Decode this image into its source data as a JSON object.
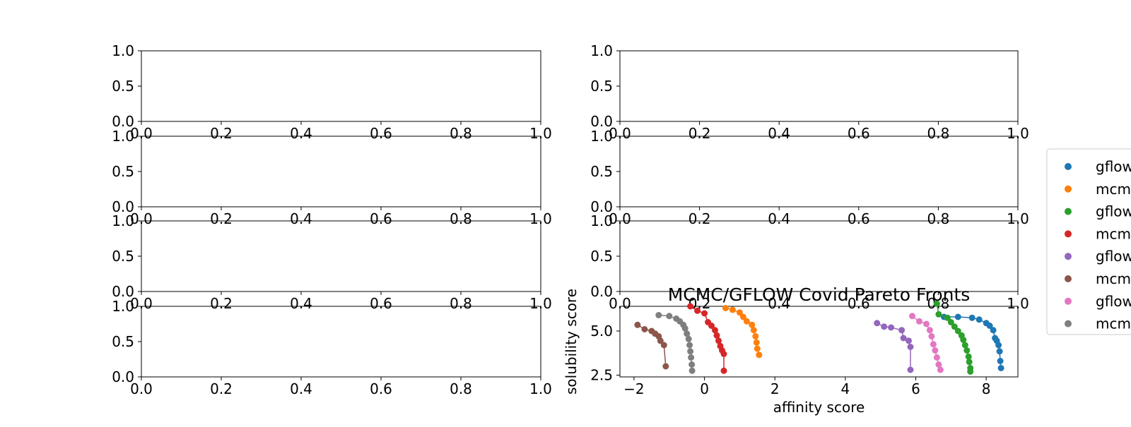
{
  "chart_data": [
    {
      "type": "empty",
      "position": "row1-left",
      "xlim": [
        0,
        1
      ],
      "ylim": [
        0,
        1
      ],
      "xticks": [
        "0.0",
        "0.2",
        "0.4",
        "0.6",
        "0.8",
        "1.0"
      ],
      "yticks": [
        "0.0",
        "0.5",
        "1.0"
      ]
    },
    {
      "type": "empty",
      "position": "row1-right",
      "xlim": [
        0,
        1
      ],
      "ylim": [
        0,
        1
      ],
      "xticks": [
        "0.0",
        "0.2",
        "0.4",
        "0.6",
        "0.8",
        "1.0"
      ],
      "yticks": [
        "0.0",
        "0.5",
        "1.0"
      ]
    },
    {
      "type": "empty",
      "position": "row2-left",
      "xlim": [
        0,
        1
      ],
      "ylim": [
        0,
        1
      ],
      "xticks": [
        "0.0",
        "0.2",
        "0.4",
        "0.6",
        "0.8",
        "1.0"
      ],
      "yticks": [
        "0.0",
        "0.5",
        "1.0"
      ]
    },
    {
      "type": "empty",
      "position": "row2-right",
      "xlim": [
        0,
        1
      ],
      "ylim": [
        0,
        1
      ],
      "xticks": [
        "0.0",
        "0.2",
        "0.4",
        "0.6",
        "0.8",
        "1.0"
      ],
      "yticks": [
        "0.0",
        "0.5",
        "1.0"
      ]
    },
    {
      "type": "empty",
      "position": "row3-left",
      "xlim": [
        0,
        1
      ],
      "ylim": [
        0,
        1
      ],
      "xticks": [
        "0.0",
        "0.2",
        "0.4",
        "0.6",
        "0.8",
        "1.0"
      ],
      "yticks": [
        "0.0",
        "0.5",
        "1.0"
      ]
    },
    {
      "type": "empty",
      "position": "row3-right",
      "xlim": [
        0,
        1
      ],
      "ylim": [
        0,
        1
      ],
      "xticks": [
        "0.0",
        "0.2",
        "0.4",
        "0.6",
        "0.8",
        "1.0"
      ],
      "yticks": [
        "0.0",
        "0.5",
        "1.0"
      ]
    },
    {
      "type": "empty",
      "position": "row4-left",
      "xlim": [
        0,
        1
      ],
      "ylim": [
        0,
        1
      ],
      "xticks": [
        "0.0",
        "0.2",
        "0.4",
        "0.6",
        "0.8",
        "1.0"
      ],
      "yticks": [
        "0.0",
        "0.5",
        "1.0"
      ]
    },
    {
      "type": "scatter",
      "position": "row4-right",
      "title": "MCMC/GFLOW Covid Pareto Fronts",
      "xlabel": "affinity score",
      "ylabel": "solubility score",
      "xlim": [
        -2.4,
        8.9
      ],
      "ylim": [
        2.4,
        6.4
      ],
      "xticks": [
        -2,
        0,
        2,
        4,
        6,
        8
      ],
      "xtick_labels": [
        "−2",
        "0",
        "2",
        "4",
        "6",
        "8"
      ],
      "yticks": [
        2.5,
        5.0
      ],
      "ytick_labels": [
        "2.5",
        "5.0"
      ],
      "legend_placement": "right, outside",
      "series": [
        {
          "name": "gflow",
          "color": "#1f77b4",
          "points": [
            [
              6.8,
              5.8
            ],
            [
              7.2,
              5.8
            ],
            [
              7.6,
              5.75
            ],
            [
              7.8,
              5.65
            ],
            [
              8.0,
              5.45
            ],
            [
              8.1,
              5.3
            ],
            [
              8.2,
              5.05
            ],
            [
              8.25,
              4.6
            ],
            [
              8.3,
              4.45
            ],
            [
              8.35,
              4.2
            ],
            [
              8.38,
              3.85
            ],
            [
              8.4,
              3.3
            ],
            [
              8.42,
              2.9
            ]
          ]
        },
        {
          "name": "mcmc",
          "color": "#ff7f0e",
          "points": [
            [
              0.6,
              6.3
            ],
            [
              0.8,
              6.2
            ],
            [
              1.0,
              6.05
            ],
            [
              1.1,
              5.8
            ],
            [
              1.2,
              5.55
            ],
            [
              1.35,
              5.35
            ],
            [
              1.4,
              5.05
            ],
            [
              1.45,
              4.7
            ],
            [
              1.48,
              4.35
            ],
            [
              1.5,
              4.0
            ],
            [
              1.55,
              3.65
            ]
          ]
        },
        {
          "name": "gflow",
          "color": "#2ca02c",
          "points": [
            [
              6.6,
              6.55
            ],
            [
              6.65,
              5.95
            ],
            [
              6.9,
              5.75
            ],
            [
              7.0,
              5.5
            ],
            [
              7.1,
              5.25
            ],
            [
              7.2,
              5.0
            ],
            [
              7.3,
              4.75
            ],
            [
              7.35,
              4.5
            ],
            [
              7.4,
              4.2
            ],
            [
              7.45,
              3.9
            ],
            [
              7.5,
              3.55
            ],
            [
              7.52,
              3.25
            ],
            [
              7.55,
              2.9
            ],
            [
              7.55,
              2.7
            ]
          ]
        },
        {
          "name": "mcmc",
          "color": "#d62728",
          "points": [
            [
              -0.4,
              6.4
            ],
            [
              -0.2,
              6.15
            ],
            [
              0.0,
              6.0
            ],
            [
              0.1,
              5.5
            ],
            [
              0.2,
              5.3
            ],
            [
              0.3,
              5.05
            ],
            [
              0.35,
              4.75
            ],
            [
              0.4,
              4.45
            ],
            [
              0.45,
              4.15
            ],
            [
              0.5,
              3.9
            ],
            [
              0.55,
              3.7
            ],
            [
              0.55,
              2.75
            ]
          ]
        },
        {
          "name": "gflow",
          "color": "#9467bd",
          "points": [
            [
              4.9,
              5.45
            ],
            [
              5.1,
              5.25
            ],
            [
              5.3,
              5.2
            ],
            [
              5.6,
              5.05
            ],
            [
              5.65,
              4.6
            ],
            [
              5.8,
              4.45
            ],
            [
              5.85,
              4.1
            ],
            [
              5.85,
              2.8
            ]
          ]
        },
        {
          "name": "mcmc",
          "color": "#8c564b",
          "points": [
            [
              -1.9,
              5.35
            ],
            [
              -1.7,
              5.1
            ],
            [
              -1.5,
              5.0
            ],
            [
              -1.4,
              4.85
            ],
            [
              -1.3,
              4.7
            ],
            [
              -1.25,
              4.45
            ],
            [
              -1.15,
              4.2
            ],
            [
              -1.1,
              3.0
            ]
          ]
        },
        {
          "name": "gflow",
          "color": "#e377c2",
          "points": [
            [
              5.9,
              5.85
            ],
            [
              6.1,
              5.55
            ],
            [
              6.3,
              5.4
            ],
            [
              6.4,
              5.05
            ],
            [
              6.45,
              4.7
            ],
            [
              6.5,
              4.25
            ],
            [
              6.55,
              3.9
            ],
            [
              6.6,
              3.5
            ],
            [
              6.65,
              3.1
            ],
            [
              6.7,
              2.8
            ]
          ]
        },
        {
          "name": "mcmc",
          "color": "#7f7f7f",
          "points": [
            [
              -1.3,
              5.9
            ],
            [
              -1.0,
              5.85
            ],
            [
              -0.8,
              5.7
            ],
            [
              -0.7,
              5.55
            ],
            [
              -0.6,
              5.35
            ],
            [
              -0.55,
              5.15
            ],
            [
              -0.5,
              4.85
            ],
            [
              -0.45,
              4.55
            ],
            [
              -0.42,
              4.2
            ],
            [
              -0.4,
              3.85
            ],
            [
              -0.38,
              3.5
            ],
            [
              -0.36,
              3.1
            ],
            [
              -0.35,
              2.75
            ]
          ]
        }
      ]
    }
  ]
}
